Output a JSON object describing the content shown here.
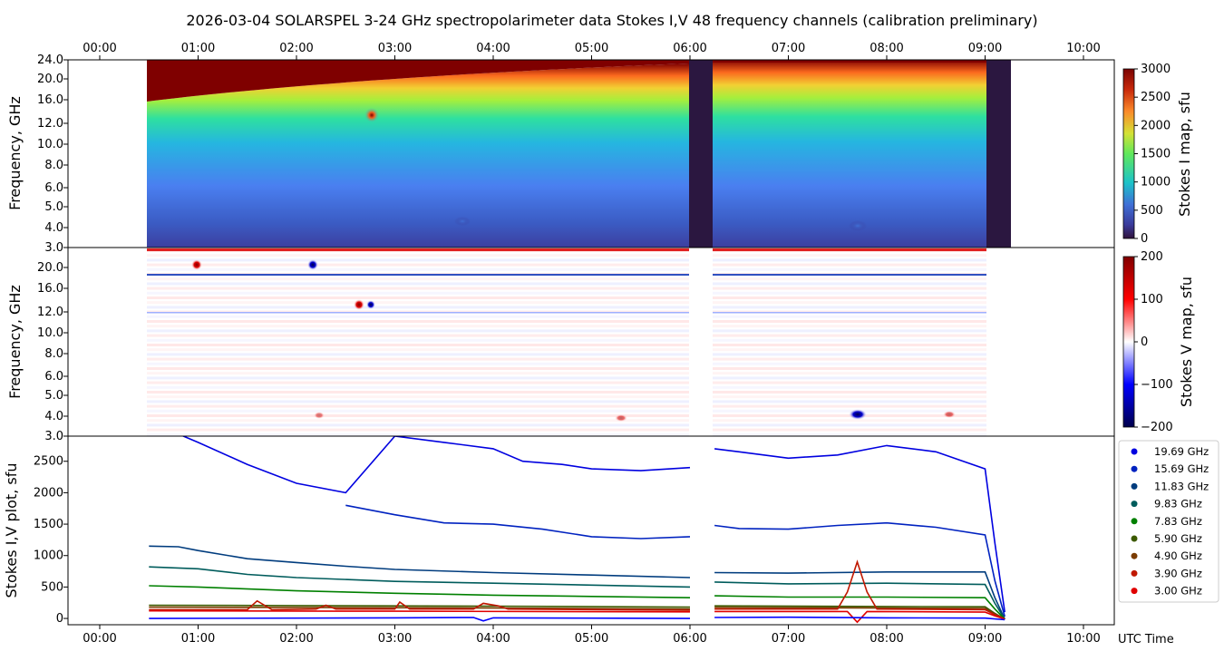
{
  "header": {
    "title": "2026-03-04  SOLARSPEL  3-24 GHz spectropolarimeter data   Stokes I,V   48 frequency channels   (calibration preliminary)"
  },
  "time_axis": {
    "ticks": [
      "00:00",
      "01:00",
      "02:00",
      "03:00",
      "04:00",
      "05:00",
      "06:00",
      "07:00",
      "08:00",
      "09:00",
      "10:00"
    ],
    "label": "UTC Time"
  },
  "colors": {
    "hot_dark": "#7f0000",
    "spectrum_low": "#2b2f8a",
    "gap": "#2b1740",
    "v_pos": "#c00000",
    "v_neg": "#00008b"
  },
  "chart_data": [
    {
      "type": "heatmap",
      "panel": "stokes-i-map",
      "ylabel": "Frequency, GHz",
      "yticks": [
        "3.0",
        "4.0",
        "5.0",
        "6.0",
        "8.0",
        "10.0",
        "12.0",
        "16.0",
        "20.0",
        "24.0"
      ],
      "colorbar_label": "Stokes I map, sfu",
      "colorbar_ticks": [
        "0",
        "500",
        "1000",
        "1500",
        "2000",
        "2500",
        "3000"
      ],
      "clim": [
        0,
        3000
      ],
      "data_start_utc": "00:28",
      "data_end_utc": "09:17",
      "gaps_utc": [
        [
          "05:59",
          "06:14"
        ],
        [
          "09:01",
          "09:17"
        ]
      ],
      "saturation_boundary_ghz": [
        [
          0.5,
          14.5
        ],
        [
          2.0,
          16.5
        ],
        [
          3.0,
          18.0
        ],
        [
          4.5,
          19.5
        ],
        [
          6.0,
          20.5
        ],
        [
          9.0,
          22.0
        ]
      ]
    },
    {
      "type": "heatmap",
      "panel": "stokes-v-map",
      "ylabel": "Frequency, GHz",
      "yticks": [
        "3.0",
        "4.0",
        "5.0",
        "6.0",
        "8.0",
        "10.0",
        "12.0",
        "16.0",
        "20.0"
      ],
      "colorbar_label": "Stokes V map, sfu",
      "colorbar_ticks": [
        "200",
        "100",
        "0",
        "−100",
        "−200"
      ],
      "clim": [
        -200,
        200
      ]
    },
    {
      "type": "line",
      "panel": "stokes-iv-plot",
      "ylabel": "Stokes I,V plot, sfu",
      "yticks": [
        "0",
        "500",
        "1000",
        "1500",
        "2000",
        "2500"
      ],
      "ylim": [
        -100,
        2900
      ],
      "legend_position": "right",
      "series": [
        {
          "name": "19.69 GHz",
          "color": "#0000e0",
          "points": [
            [
              0.5,
              3400
            ],
            [
              0.7,
              3000
            ],
            [
              1.0,
              2800
            ],
            [
              1.5,
              2450
            ],
            [
              2.0,
              2150
            ],
            [
              2.5,
              2000
            ],
            [
              3.0,
              2900
            ],
            [
              3.5,
              2800
            ],
            [
              4.0,
              2700
            ],
            [
              4.3,
              2500
            ],
            [
              4.7,
              2450
            ],
            [
              5.0,
              2380
            ],
            [
              5.5,
              2350
            ],
            [
              6.0,
              2400
            ],
            [
              6.25,
              2700
            ],
            [
              6.5,
              2650
            ],
            [
              7.0,
              2550
            ],
            [
              7.5,
              2600
            ],
            [
              8.0,
              2750
            ],
            [
              8.5,
              2650
            ],
            [
              9.0,
              2380
            ],
            [
              9.1,
              1200
            ],
            [
              9.2,
              100
            ]
          ]
        },
        {
          "name": "15.69 GHz",
          "color": "#0022c0",
          "points": [
            [
              2.5,
              1800
            ],
            [
              3.0,
              1650
            ],
            [
              3.5,
              1520
            ],
            [
              4.0,
              1500
            ],
            [
              4.5,
              1420
            ],
            [
              5.0,
              1300
            ],
            [
              5.5,
              1270
            ],
            [
              6.0,
              1300
            ],
            [
              6.25,
              1480
            ],
            [
              6.5,
              1430
            ],
            [
              7.0,
              1420
            ],
            [
              7.5,
              1480
            ],
            [
              8.0,
              1520
            ],
            [
              8.5,
              1450
            ],
            [
              9.0,
              1330
            ],
            [
              9.1,
              600
            ],
            [
              9.2,
              30
            ]
          ]
        },
        {
          "name": "11.83 GHz",
          "color": "#003c7e",
          "points": [
            [
              0.5,
              1150
            ],
            [
              0.8,
              1140
            ],
            [
              1.0,
              1080
            ],
            [
              1.5,
              950
            ],
            [
              2.0,
              890
            ],
            [
              2.5,
              830
            ],
            [
              3.0,
              780
            ],
            [
              4.0,
              730
            ],
            [
              5.0,
              690
            ],
            [
              6.0,
              650
            ],
            [
              6.25,
              730
            ],
            [
              7.0,
              720
            ],
            [
              8.0,
              740
            ],
            [
              9.0,
              740
            ],
            [
              9.1,
              330
            ],
            [
              9.2,
              -10
            ]
          ]
        },
        {
          "name": "9.83 GHz",
          "color": "#005c5c",
          "points": [
            [
              0.5,
              820
            ],
            [
              1.0,
              790
            ],
            [
              1.5,
              700
            ],
            [
              2.0,
              650
            ],
            [
              3.0,
              590
            ],
            [
              4.0,
              560
            ],
            [
              5.0,
              530
            ],
            [
              6.0,
              500
            ],
            [
              6.25,
              580
            ],
            [
              7.0,
              550
            ],
            [
              8.0,
              560
            ],
            [
              9.0,
              540
            ],
            [
              9.1,
              240
            ],
            [
              9.2,
              -10
            ]
          ]
        },
        {
          "name": "7.83 GHz",
          "color": "#008000",
          "points": [
            [
              0.5,
              520
            ],
            [
              1.0,
              500
            ],
            [
              2.0,
              440
            ],
            [
              3.0,
              400
            ],
            [
              4.0,
              370
            ],
            [
              5.0,
              350
            ],
            [
              6.0,
              330
            ],
            [
              6.25,
              360
            ],
            [
              7.0,
              340
            ],
            [
              8.0,
              340
            ],
            [
              9.0,
              330
            ],
            [
              9.1,
              150
            ],
            [
              9.2,
              -10
            ]
          ]
        },
        {
          "name": "5.90 GHz",
          "color": "#3c5a00",
          "points": [
            [
              0.5,
              210
            ],
            [
              2.0,
              205
            ],
            [
              4.0,
              195
            ],
            [
              6.0,
              180
            ],
            [
              6.25,
              200
            ],
            [
              8.0,
              190
            ],
            [
              9.0,
              185
            ],
            [
              9.1,
              80
            ],
            [
              9.2,
              -10
            ]
          ]
        },
        {
          "name": "4.90 GHz",
          "color": "#7a3c00",
          "points": [
            [
              0.5,
              180
            ],
            [
              2.0,
              175
            ],
            [
              4.0,
              165
            ],
            [
              6.0,
              150
            ],
            [
              6.25,
              175
            ],
            [
              8.0,
              165
            ],
            [
              9.0,
              160
            ],
            [
              9.1,
              70
            ],
            [
              9.2,
              -10
            ]
          ]
        },
        {
          "name": "3.90 GHz",
          "color": "#c01800",
          "points": [
            [
              0.5,
              140
            ],
            [
              1.5,
              140
            ],
            [
              1.6,
              280
            ],
            [
              1.75,
              140
            ],
            [
              2.2,
              150
            ],
            [
              2.3,
              210
            ],
            [
              2.4,
              150
            ],
            [
              3.0,
              150
            ],
            [
              3.05,
              260
            ],
            [
              3.15,
              150
            ],
            [
              3.8,
              150
            ],
            [
              3.9,
              240
            ],
            [
              4.05,
              200
            ],
            [
              4.15,
              150
            ],
            [
              6.0,
              130
            ],
            [
              6.25,
              150
            ],
            [
              7.5,
              150
            ],
            [
              7.6,
              420
            ],
            [
              7.7,
              900
            ],
            [
              7.8,
              420
            ],
            [
              7.9,
              150
            ],
            [
              9.0,
              140
            ],
            [
              9.1,
              60
            ],
            [
              9.2,
              -10
            ]
          ]
        },
        {
          "name": "3.00 GHz",
          "color": "#e00000",
          "points": [
            [
              0.5,
              120
            ],
            [
              3.0,
              115
            ],
            [
              6.0,
              105
            ],
            [
              6.25,
              110
            ],
            [
              7.6,
              110
            ],
            [
              7.7,
              -60
            ],
            [
              7.8,
              110
            ],
            [
              9.0,
              100
            ],
            [
              9.1,
              40
            ],
            [
              9.2,
              -10
            ]
          ]
        },
        {
          "name": "",
          "color": "#0000ff",
          "points": [
            [
              0.5,
              0
            ],
            [
              3.0,
              10
            ],
            [
              3.8,
              15
            ],
            [
              3.9,
              -40
            ],
            [
              4.0,
              10
            ],
            [
              6.0,
              0
            ],
            [
              6.25,
              15
            ],
            [
              7.0,
              20
            ],
            [
              8.0,
              10
            ],
            [
              9.0,
              5
            ],
            [
              9.2,
              -20
            ]
          ]
        }
      ]
    }
  ]
}
